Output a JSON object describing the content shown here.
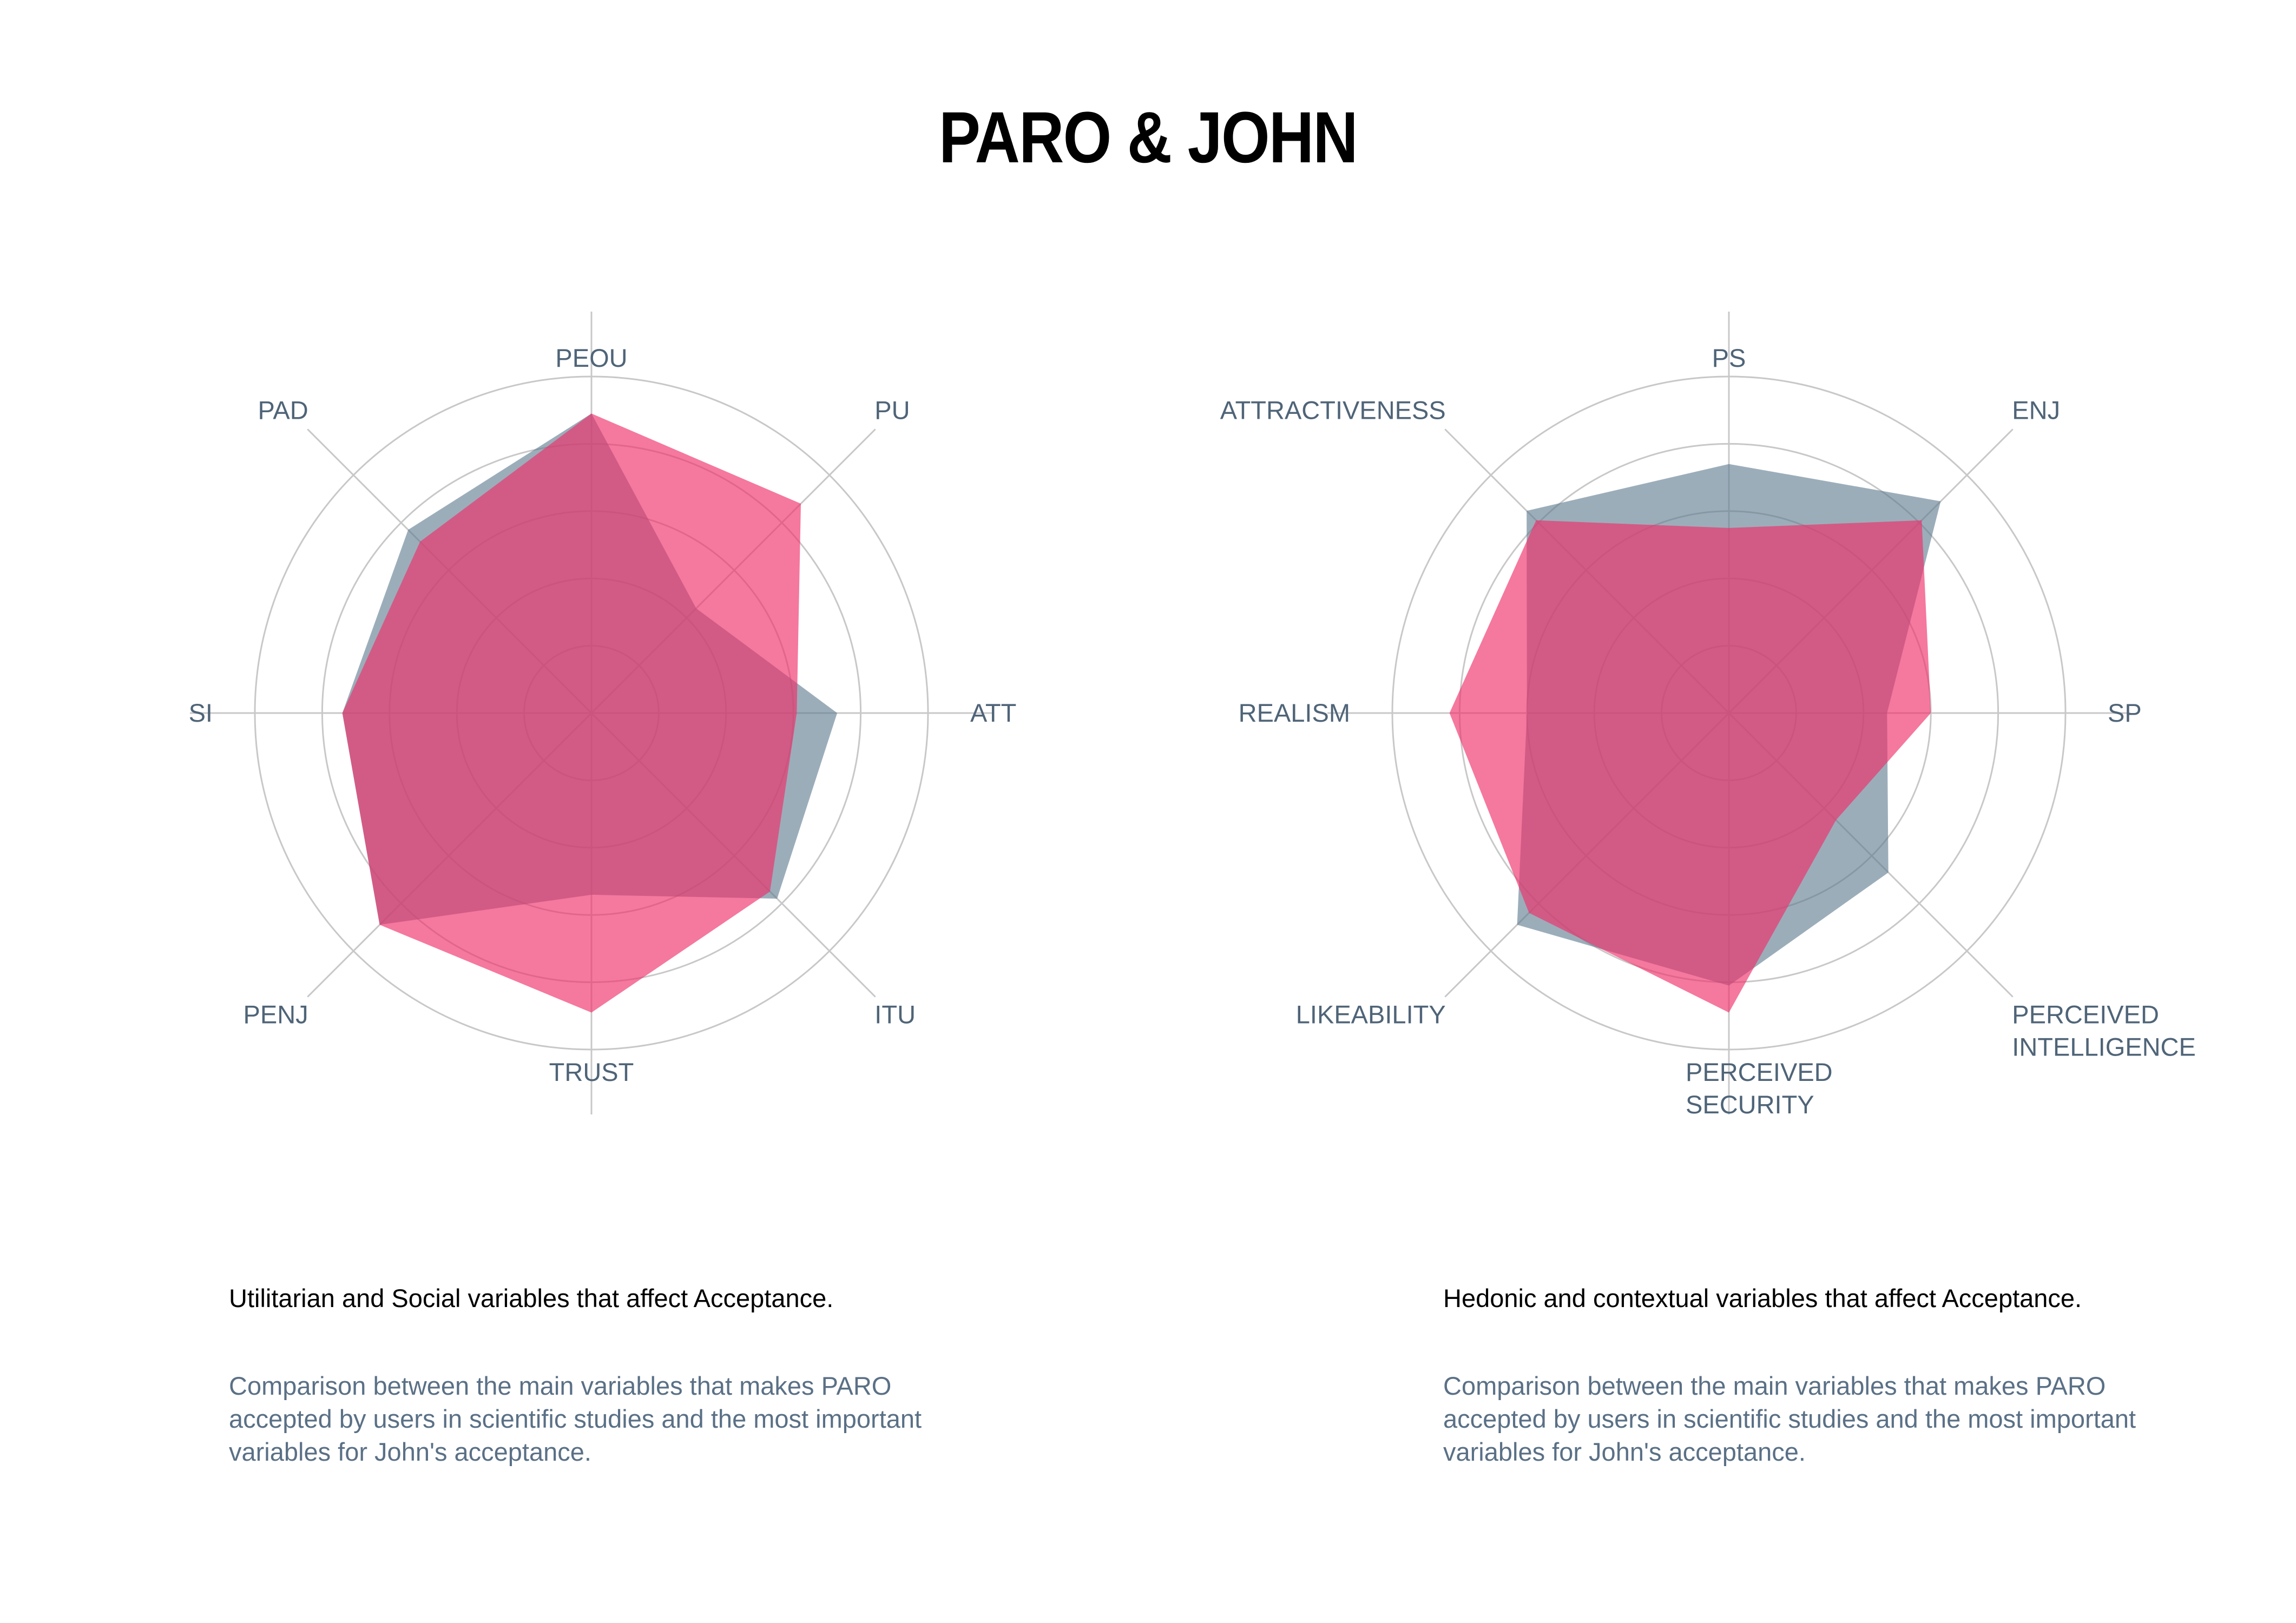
{
  "title": "PARO & JOHN",
  "colors": {
    "paro": "#5f7a8f",
    "john": "#f0306a",
    "grid": "#c8c8c8",
    "label": "#4f6478"
  },
  "chart_data": [
    {
      "type": "radar",
      "axes": [
        [
          "PEOU"
        ],
        [
          "PU"
        ],
        [
          "ATT"
        ],
        [
          "ITU"
        ],
        [
          "TRUST"
        ],
        [
          "PENJ"
        ],
        [
          "SI"
        ],
        [
          "PAD"
        ]
      ],
      "rmax": 1,
      "grid_levels": [
        0.2,
        0.4,
        0.6,
        0.8,
        1.0
      ],
      "series": [
        {
          "values": [
            0.89,
            0.44,
            0.73,
            0.78,
            0.54,
            0.89,
            0.74,
            0.77
          ]
        },
        {
          "values": [
            0.89,
            0.88,
            0.61,
            0.75,
            0.89,
            0.89,
            0.74,
            0.72
          ]
        }
      ]
    },
    {
      "type": "radar",
      "axes": [
        [
          "PS"
        ],
        [
          "ENJ"
        ],
        [
          "SP"
        ],
        [
          "PERCEIVED",
          "INTELLIGENCE"
        ],
        [
          "PERCEIVED",
          "SECURITY"
        ],
        [
          "LIKEABILITY"
        ],
        [
          "REALISM"
        ],
        [
          "ATTRACTIVENESS"
        ]
      ],
      "rmax": 1,
      "grid_levels": [
        0.2,
        0.4,
        0.6,
        0.8,
        1.0
      ],
      "series": [
        {
          "values": [
            0.74,
            0.89,
            0.47,
            0.67,
            0.81,
            0.89,
            0.6,
            0.85
          ]
        },
        {
          "values": [
            0.55,
            0.81,
            0.6,
            0.45,
            0.89,
            0.84,
            0.83,
            0.81
          ]
        }
      ]
    }
  ],
  "captions": [
    {
      "title": "Utilitarian and Social variables that affect Acceptance.",
      "body": "Comparison between the main variables that makes PARO accepted by users in scientific studies and the most important variables for John's acceptance."
    },
    {
      "title": "Hedonic and contextual variables that affect Acceptance.",
      "body": "Comparison between the main variables that makes PARO accepted by users in scientific studies and the most important variables for John's acceptance."
    }
  ]
}
